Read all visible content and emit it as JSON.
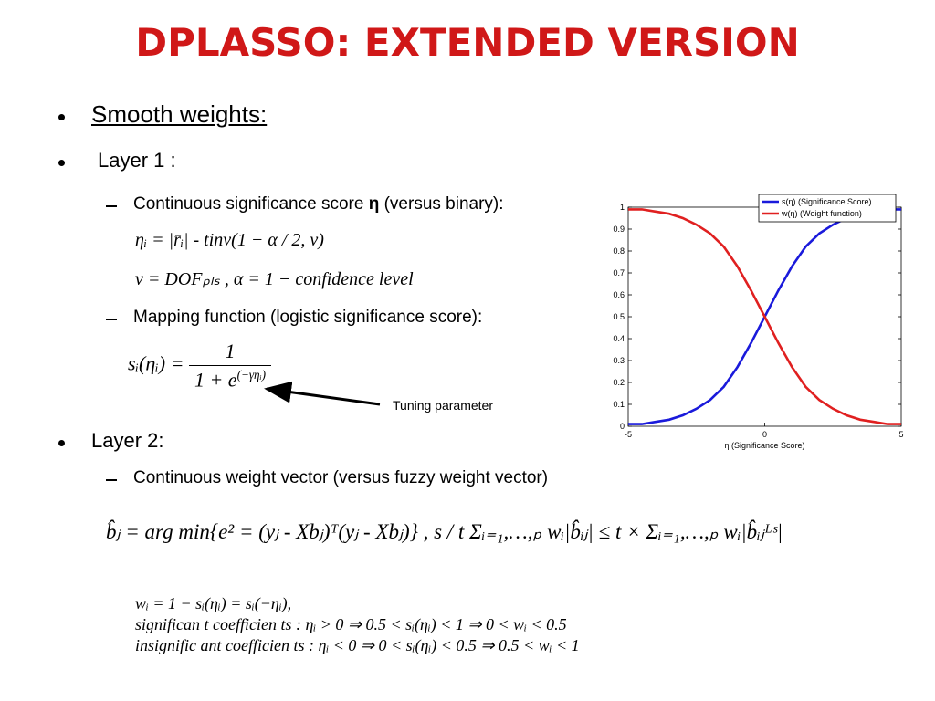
{
  "title": "DPLASSO: EXTENDED VERSION",
  "bullets": {
    "smooth": "Smooth weights:",
    "layer1": "Layer 1 :",
    "layer2": "Layer 2:"
  },
  "sub": {
    "score_before": "Continuous significance score ",
    "score_eta": "η",
    "score_after": " (versus binary):",
    "mapping": "Mapping function (logistic significance score):",
    "weight": "Continuous weight vector (versus fuzzy weight vector)"
  },
  "equations": {
    "eta": "ηᵢ = |r̄ᵢ| - tinv(1 − α / 2, v)",
    "dof": "v = DOFₚₗₛ ,  α = 1 − confidence level",
    "logistic": {
      "lhs": "sᵢ(ηᵢ) = ",
      "numerator": "1",
      "denominator_base": "1 + e",
      "denominator_exponent": "(−γηᵢ)"
    },
    "lasso": "b̂ⱼ = arg min{e² = (yⱼ - Xbⱼ)ᵀ(yⱼ - Xbⱼ)}  , s / t    Σᵢ₌₁,…,ₚ wᵢ|b̂ᵢⱼ| ≤ t × Σᵢ₌₁,…,ₚ wᵢ|b̂ᵢⱼᴸˢ|",
    "weights": [
      "wᵢ = 1 − sᵢ(ηᵢ) = sᵢ(−ηᵢ),",
      "significan t coefficien ts : ηᵢ > 0 ⇒ 0.5 < sᵢ(ηᵢ) < 1 ⇒ 0 < wᵢ < 0.5",
      "insignific ant coefficien ts : ηᵢ < 0 ⇒ 0 < sᵢ(ηᵢ) < 0.5 ⇒ 0.5 < wᵢ < 1"
    ]
  },
  "annotation": "Tuning parameter",
  "chart_data": {
    "type": "line",
    "x": [
      -5,
      -4.5,
      -4,
      -3.5,
      -3,
      -2.5,
      -2,
      -1.5,
      -1,
      -0.5,
      0,
      0.5,
      1,
      1.5,
      2,
      2.5,
      3,
      3.5,
      4,
      4.5,
      5
    ],
    "series": [
      {
        "name": "s(η) (Significance Score)",
        "color": "#1a1adb",
        "values": [
          0.01,
          0.01,
          0.02,
          0.03,
          0.05,
          0.08,
          0.12,
          0.18,
          0.27,
          0.38,
          0.5,
          0.62,
          0.73,
          0.82,
          0.88,
          0.92,
          0.95,
          0.97,
          0.98,
          0.99,
          0.99
        ]
      },
      {
        "name": "w(η) (Weight function)",
        "color": "#e02020",
        "values": [
          0.99,
          0.99,
          0.98,
          0.97,
          0.95,
          0.92,
          0.88,
          0.82,
          0.73,
          0.62,
          0.5,
          0.38,
          0.27,
          0.18,
          0.12,
          0.08,
          0.05,
          0.03,
          0.02,
          0.01,
          0.01
        ]
      }
    ],
    "x_label": "η (Significance Score)",
    "xlim": [
      -5,
      5
    ],
    "xticks": [
      -5,
      0,
      5
    ],
    "ylim": [
      0,
      1
    ],
    "yticks": [
      0,
      0.1,
      0.2,
      0.3,
      0.4,
      0.5,
      0.6,
      0.7,
      0.8,
      0.9,
      1
    ],
    "grid": false,
    "legend": "top-right"
  }
}
